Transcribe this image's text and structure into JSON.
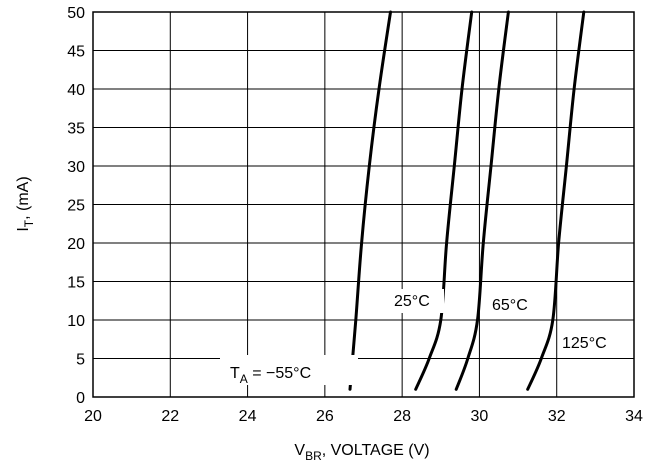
{
  "chart_data": {
    "type": "line",
    "xlabel": {
      "main": "V",
      "sub": "BR",
      "rest": ", VOLTAGE (V)"
    },
    "ylabel": {
      "main": "I",
      "sub": "T",
      "rest": ", (mA)"
    },
    "xlim": [
      20,
      34
    ],
    "ylim": [
      0,
      50
    ],
    "xticks": [
      20,
      22,
      24,
      26,
      28,
      30,
      32,
      34
    ],
    "yticks": [
      0,
      5,
      10,
      15,
      20,
      25,
      30,
      35,
      40,
      45,
      50
    ],
    "grid": true,
    "series": [
      {
        "name": "T_A = −55°C",
        "x": [
          26.65,
          26.8,
          26.95,
          27.15,
          27.4,
          27.7
        ],
        "y": [
          1,
          10,
          20,
          30,
          40,
          50
        ]
      },
      {
        "name": "25°C",
        "x": [
          28.35,
          28.7,
          29.0,
          29.15,
          29.35,
          29.55,
          29.8
        ],
        "y": [
          1,
          5,
          10,
          20,
          30,
          40,
          50
        ]
      },
      {
        "name": "65°C",
        "x": [
          29.4,
          29.7,
          29.95,
          30.1,
          30.3,
          30.5,
          30.75
        ],
        "y": [
          1,
          5,
          10,
          20,
          30,
          40,
          50
        ]
      },
      {
        "name": "125°C",
        "x": [
          31.25,
          31.6,
          31.9,
          32.05,
          32.25,
          32.45,
          32.7
        ],
        "y": [
          1,
          5,
          10,
          20,
          30,
          40,
          50
        ]
      }
    ],
    "annotations": [
      {
        "main": "T",
        "sub": "A",
        "rest": " = −55°C",
        "anchor_series": 0
      },
      {
        "text": "25°C",
        "anchor_series": 1
      },
      {
        "text": "65°C",
        "anchor_series": 2
      },
      {
        "text": "125°C",
        "anchor_series": 3
      }
    ]
  }
}
